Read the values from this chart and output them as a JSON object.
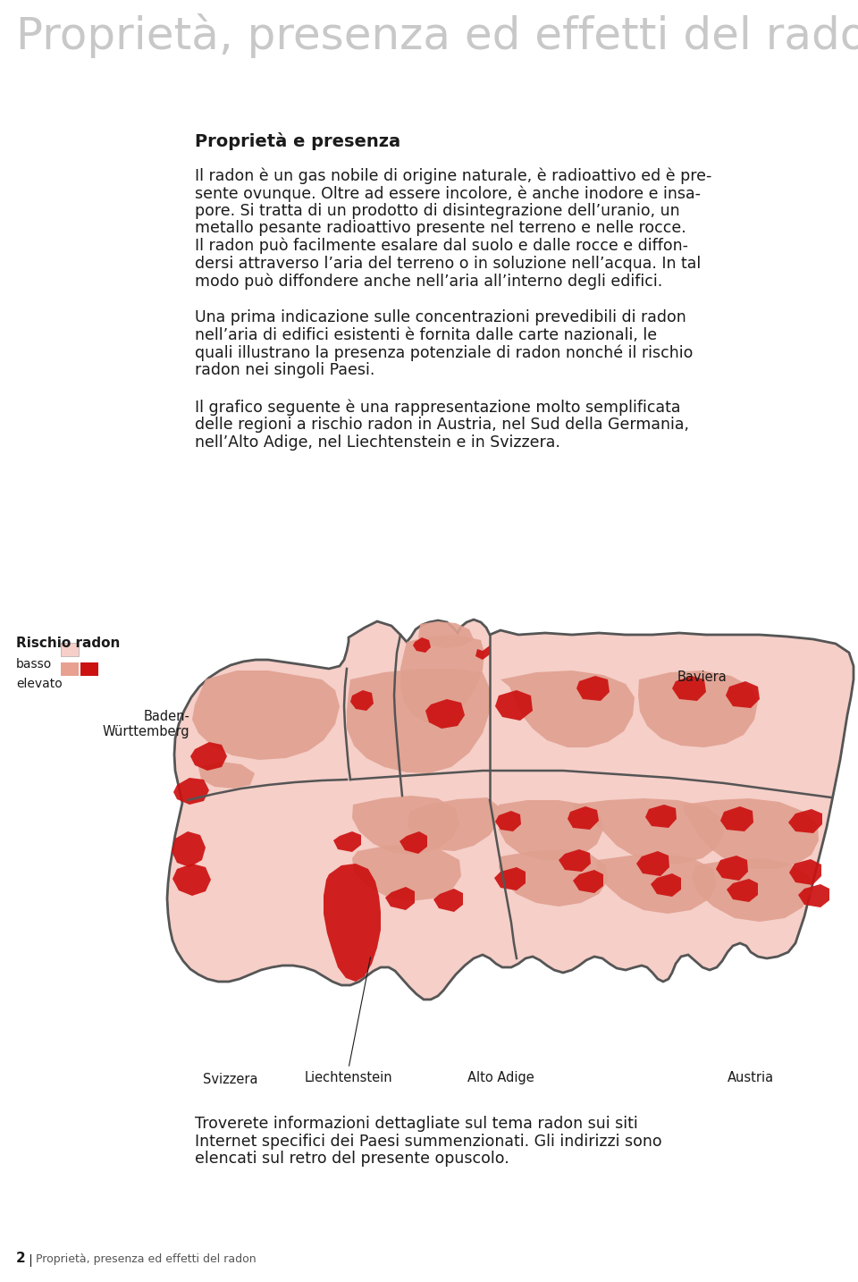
{
  "title": "Proprietà, presenza ed effetti del radon",
  "title_color": "#c8c8c8",
  "title_fontsize": 36,
  "background_color": "#ffffff",
  "section_title": "Proprietà e presenza",
  "section_title_fontsize": 14,
  "body_text_1a": "Il radon è un gas nobile di origine naturale, è radioattivo ed è pre-",
  "body_text_1b": "sente ovunque. Oltre ad essere incolore, è anche inodore e insa-",
  "body_text_1c": "pore. Si tratta di un prodotto di disintegrazione dell’uranio, un",
  "body_text_1d": "metallo pesante radioattivo presente nel terreno e nelle rocce.",
  "body_text_1e": "Il radon può facilmente esalare dal suolo e dalle rocce e diffon-",
  "body_text_1f": "dersi attraverso l’aria del terreno o in soluzione nell’acqua. In tal",
  "body_text_1g": "modo può diffondere anche nell’aria all’interno degli edifici.",
  "body_text_2a": "Una prima indicazione sulle concentrazioni prevedibili di radon",
  "body_text_2b": "nell’aria di edifici esistenti è fornita dalle carte nazionali, le",
  "body_text_2c": "quali illustrano la presenza potenziale di radon nonché il rischio",
  "body_text_2d": "radon nei singoli Paesi.",
  "body_text_3a": "Il grafico seguente è una rappresentazione molto semplificata",
  "body_text_3b": "delle regioni a rischio radon in Austria, nel Sud della Germania,",
  "body_text_3c": "nell’Alto Adige, nel Liechtenstein e in Svizzera.",
  "body_text_4a": "Troverete informazioni dettagliate sul tema radon sui siti",
  "body_text_4b": "Internet specifici dei Paesi summenzionati. Gli indirizzi sono",
  "body_text_4c": "elencati sul retro del presente opuscolo.",
  "body_fontsize": 12.5,
  "legend_title": "Rischio radon",
  "legend_basso": "basso",
  "legend_elevato": "elevato",
  "legend_color_basso": "#f5cfc8",
  "legend_color_elevato_1": "#e8a090",
  "legend_color_elevato_2": "#cc1111",
  "map_base_color": "#f5cfc8",
  "map_medium_color": "#e0a090",
  "map_high_color": "#cc1111",
  "map_border_color": "#555555",
  "label_baviera": "Baviera",
  "label_bw": "Baden-\nWürttemberg",
  "label_svizzera": "Svizzera",
  "label_liechtenstein": "Liechtenstein",
  "label_alto_adige": "Alto Adige",
  "label_austria": "Austria",
  "footer_number": "2",
  "footer_text": "Proprietà, presenza ed effetti del radon",
  "footer_fontsize": 9,
  "text_color": "#1a1a1a",
  "light_text_color": "#555555"
}
